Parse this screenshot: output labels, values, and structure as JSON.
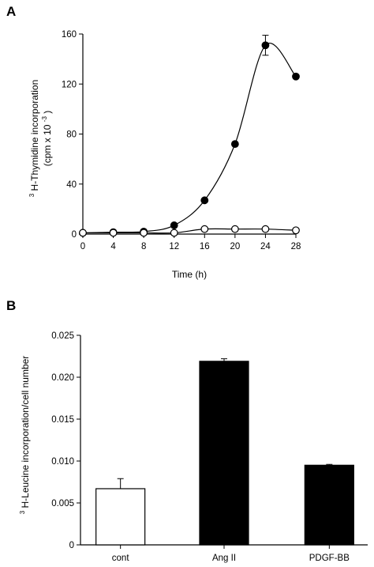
{
  "chart_data": [
    {
      "panel": "A",
      "type": "line",
      "xlabel": "Time (h)",
      "ylabel_sup": "3",
      "ylabel": "H-Thymidine incorporation",
      "ylabel_units_pre": "(cpm x 10",
      "ylabel_units_sup": "-3",
      "ylabel_units_post": ")",
      "xlim": [
        0,
        28
      ],
      "ylim": [
        0,
        160
      ],
      "x_ticks": [
        0,
        4,
        8,
        12,
        16,
        20,
        24,
        28
      ],
      "y_ticks": [
        0,
        40,
        80,
        120,
        160
      ],
      "grid": false,
      "series": [
        {
          "marker": "filled-circle",
          "x": [
            0,
            4,
            8,
            12,
            16,
            20,
            24,
            28
          ],
          "y": [
            1,
            1.5,
            2,
            7,
            27,
            72,
            151,
            126
          ],
          "error": [
            0,
            0,
            0,
            0,
            0,
            0,
            8,
            0
          ]
        },
        {
          "marker": "open-circle",
          "x": [
            0,
            4,
            8,
            12,
            16,
            20,
            24,
            28
          ],
          "y": [
            1,
            1,
            1,
            1,
            4,
            4,
            4,
            3
          ],
          "error": [
            0,
            0,
            0,
            0,
            0,
            0,
            0,
            0
          ]
        }
      ]
    },
    {
      "panel": "B",
      "type": "bar",
      "ylabel_sup": "3",
      "ylabel": "H-Leucine incorporation/cell number",
      "categories": [
        "cont",
        "Ang II",
        "PDGF-BB"
      ],
      "values": [
        0.0067,
        0.0219,
        0.0095
      ],
      "errors": [
        0.0012,
        0.0003,
        0.0001
      ],
      "bar_fill": [
        "#ffffff",
        "#000000",
        "#000000"
      ],
      "ylim": [
        0,
        0.025
      ],
      "y_ticks": [
        0,
        0.005,
        0.01,
        0.015,
        0.02,
        0.025
      ],
      "y_tick_labels": [
        "0",
        "0.005",
        "0.010",
        "0.015",
        "0.020",
        "0.025"
      ],
      "grid": false
    }
  ]
}
